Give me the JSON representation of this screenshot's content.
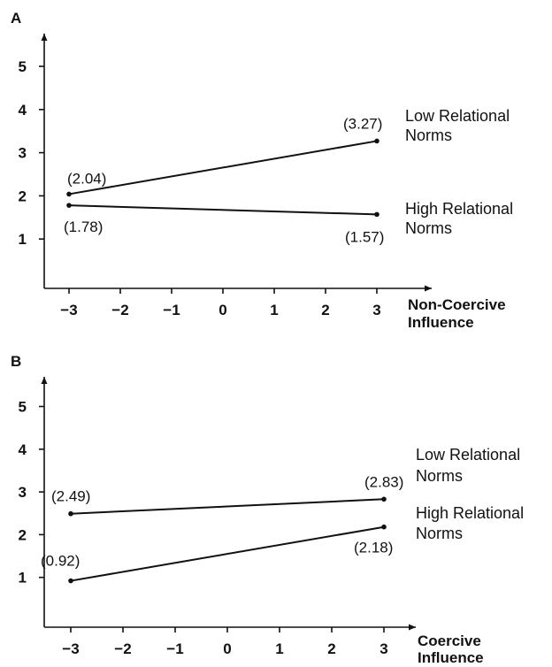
{
  "chart_data": [
    {
      "type": "line",
      "panel": "A",
      "x": [
        -3,
        3
      ],
      "xticks": [
        "−3",
        "−2",
        "−1",
        "0",
        "1",
        "2",
        "3"
      ],
      "yticks": [
        "1",
        "2",
        "3",
        "4",
        "5"
      ],
      "xlabel": [
        "Non-Coercive",
        "Influence"
      ],
      "ylabel": "",
      "series": [
        {
          "name": "Low Relational Norms",
          "legend_lines": [
            "Low Relational",
            "Norms"
          ],
          "values": [
            2.04,
            3.27
          ],
          "labels": [
            "(2.04)",
            "(3.27)"
          ]
        },
        {
          "name": "High Relational Norms",
          "legend_lines": [
            "High Relational",
            "Norms"
          ],
          "values": [
            1.78,
            1.57
          ],
          "labels": [
            "(1.78)",
            "(1.57)"
          ]
        }
      ]
    },
    {
      "type": "line",
      "panel": "B",
      "x": [
        -3,
        3
      ],
      "xticks": [
        "−3",
        "−2",
        "−1",
        "0",
        "1",
        "2",
        "3"
      ],
      "yticks": [
        "1",
        "2",
        "3",
        "4",
        "5"
      ],
      "xlabel": [
        "Coercive",
        "Influence"
      ],
      "ylabel": "",
      "series": [
        {
          "name": "Low Relational Norms",
          "legend_lines": [
            "Low Relational",
            "Norms"
          ],
          "values": [
            2.49,
            2.83
          ],
          "labels": [
            "(2.49)",
            "(2.83)"
          ]
        },
        {
          "name": "High Relational Norms",
          "legend_lines": [
            "High Relational",
            "Norms"
          ],
          "values": [
            0.92,
            2.18
          ],
          "labels": [
            "(0.92)",
            "(2.18)"
          ]
        }
      ]
    }
  ]
}
